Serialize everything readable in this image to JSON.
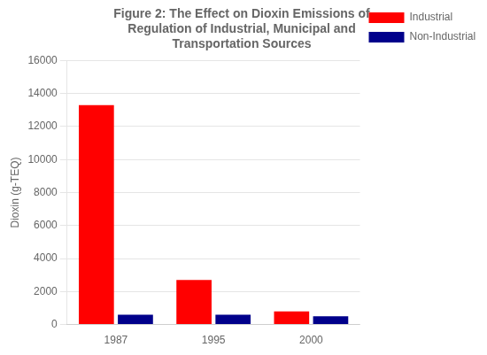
{
  "chart_data": {
    "type": "bar",
    "title": "Figure 2: The Effect on Dioxin Emissions of\nRegulation of Industrial, Municipal and\nTransportation Sources",
    "categories": [
      "1987",
      "1995",
      "2000"
    ],
    "series": [
      {
        "name": "Industrial",
        "color": "#FF0000",
        "values": [
          13300,
          2700,
          800
        ]
      },
      {
        "name": "Non-Industrial",
        "color": "#00008B",
        "values": [
          600,
          600,
          500
        ]
      }
    ],
    "ylabel": "Dioxin (g-TEQ)",
    "ylim": [
      0,
      16000
    ],
    "yticks": [
      0,
      2000,
      4000,
      6000,
      8000,
      10000,
      12000,
      14000,
      16000
    ],
    "grid": true,
    "legend": "right"
  }
}
